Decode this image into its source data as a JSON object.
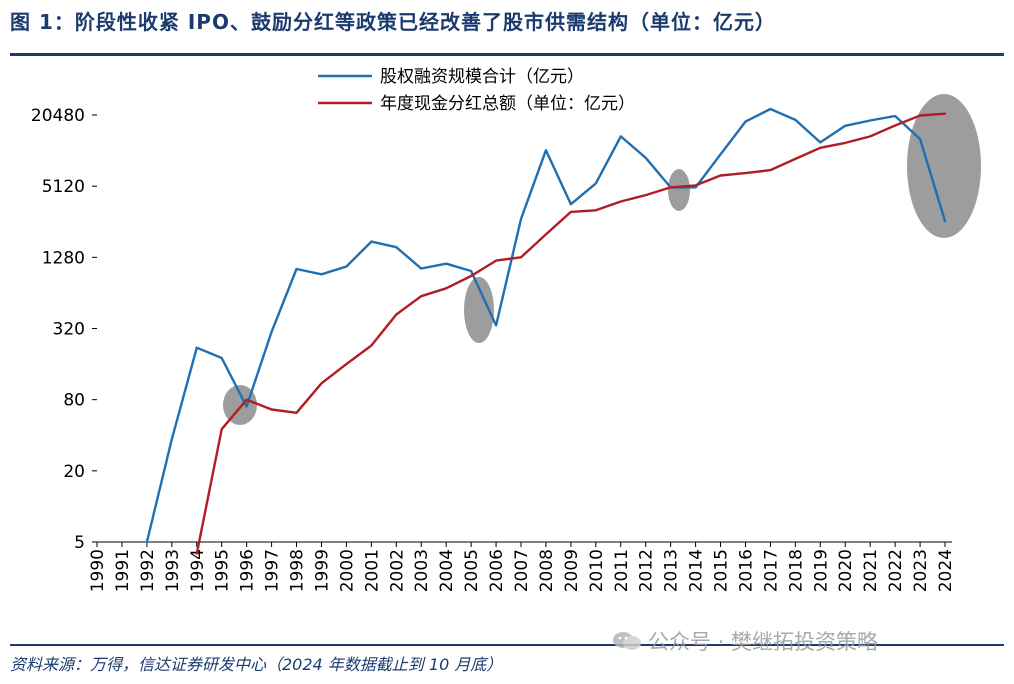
{
  "header": {
    "title": "图 1：阶段性收紧 IPO、鼓励分红等政策已经改善了股市供需结构（单位：亿元）"
  },
  "footer": {
    "source": "资料来源：万得，信达证券研发中心（2024 年数据截止到 10 月底）",
    "watermark": "公众号 · 樊继拓投资策略"
  },
  "chart_data": {
    "type": "line",
    "title": "图 1：阶段性收紧 IPO、鼓励分红等政策已经改善了股市供需结构（单位：亿元）",
    "y_scale": "log",
    "ylim": [
      5,
      20480
    ],
    "y_ticks": [
      5,
      20,
      80,
      320,
      1280,
      5120,
      20480
    ],
    "y_tick_labels": [
      "5",
      "20",
      "80",
      "320",
      "1280",
      "5120",
      "20480"
    ],
    "categories": [
      "1990",
      "1991",
      "1992",
      "1993",
      "1994",
      "1995",
      "1996",
      "1997",
      "1998",
      "1999",
      "2000",
      "2001",
      "2002",
      "2003",
      "2004",
      "2005",
      "2006",
      "2007",
      "2008",
      "2009",
      "2010",
      "2011",
      "2012",
      "2013",
      "2014",
      "2015",
      "2016",
      "2017",
      "2018",
      "2019",
      "2020",
      "2021",
      "2022",
      "2023",
      "2024"
    ],
    "legend_position": "top-center",
    "series": [
      {
        "name": "股权融资规模合计（亿元）",
        "color": "#1f6fb2",
        "values": [
          null,
          null,
          5,
          37,
          220,
          180,
          70,
          300,
          1020,
          920,
          1070,
          1740,
          1560,
          1030,
          1130,
          980,
          340,
          2700,
          10300,
          3600,
          5400,
          13500,
          8900,
          5000,
          5000,
          9500,
          18000,
          23000,
          18600,
          12000,
          16600,
          18400,
          20100,
          12800,
          2600
        ]
      },
      {
        "name": "年度现金分红总额（单位：亿元）",
        "color": "#b01e23",
        "values": [
          null,
          null,
          null,
          null,
          4,
          45,
          80,
          66,
          62,
          110,
          160,
          230,
          420,
          600,
          700,
          890,
          1200,
          1280,
          2000,
          3100,
          3200,
          3800,
          4300,
          5000,
          5200,
          6300,
          6600,
          7000,
          8700,
          10800,
          11900,
          13500,
          16700,
          20300,
          21000
        ]
      }
    ],
    "highlights": [
      {
        "year": "1996",
        "label": "highlight-1996"
      },
      {
        "year": "2005",
        "label": "highlight-2005"
      },
      {
        "year": "2014",
        "label": "highlight-2014"
      },
      {
        "year": "2024",
        "label": "highlight-2024"
      }
    ]
  }
}
